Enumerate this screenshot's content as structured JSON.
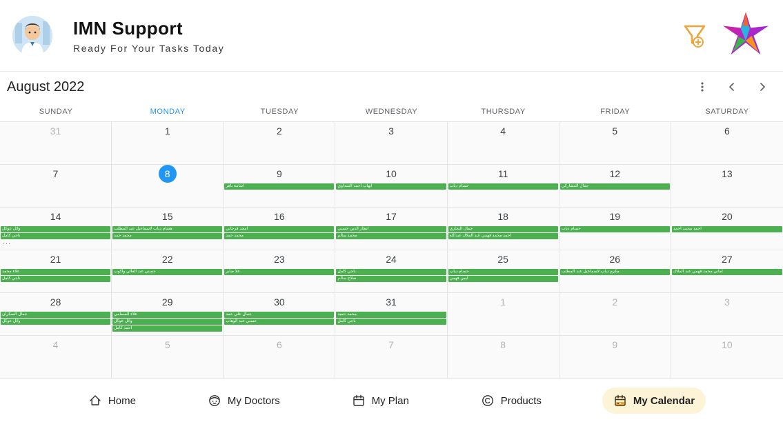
{
  "header": {
    "title": "IMN Support",
    "subtitle": "Ready For Your Tasks Today"
  },
  "colors": {
    "event_green": "#4caf50",
    "selected_blue": "#2196f3",
    "nav_active_bg": "#fdf3d7"
  },
  "calendar": {
    "month_label": "August 2022",
    "weekdays": [
      {
        "label": "SUNDAY",
        "active": false
      },
      {
        "label": "MONDAY",
        "active": true
      },
      {
        "label": "TUESDAY",
        "active": false
      },
      {
        "label": "WEDNESDAY",
        "active": false
      },
      {
        "label": "THURSDAY",
        "active": false
      },
      {
        "label": "FRIDAY",
        "active": false
      },
      {
        "label": "SATURDAY",
        "active": false
      }
    ],
    "weeks": [
      [
        {
          "day": "31",
          "muted": true,
          "events": []
        },
        {
          "day": "1",
          "events": []
        },
        {
          "day": "2",
          "events": []
        },
        {
          "day": "3",
          "events": []
        },
        {
          "day": "4",
          "events": []
        },
        {
          "day": "5",
          "events": []
        },
        {
          "day": "6",
          "events": []
        }
      ],
      [
        {
          "day": "7",
          "events": []
        },
        {
          "day": "8",
          "selected": true,
          "events": []
        },
        {
          "day": "9",
          "events": [
            "اسامة باهر"
          ]
        },
        {
          "day": "10",
          "events": [
            "ايهاب احمد السداوي"
          ]
        },
        {
          "day": "11",
          "events": [
            "حسام دياب"
          ]
        },
        {
          "day": "12",
          "events": [
            "جمال المشاركي"
          ]
        },
        {
          "day": "13",
          "events": []
        }
      ],
      [
        {
          "day": "14",
          "events": [
            "وائل عوكل",
            "ناجي كامل"
          ],
          "more": true
        },
        {
          "day": "15",
          "events": [
            "هشام دياب لاسماعيل عبد المطلب",
            "محمد حمد"
          ]
        },
        {
          "day": "16",
          "events": [
            "امجد فرجاني",
            "محمد حمد"
          ]
        },
        {
          "day": "17",
          "events": [
            "انظار الدين حسني",
            "محمد سالم"
          ]
        },
        {
          "day": "18",
          "events": [
            "جمال البخاري",
            "احمد محمد فهمي عبد الملاك عبدالله"
          ]
        },
        {
          "day": "19",
          "events": [
            "حسام دياب"
          ]
        },
        {
          "day": "20",
          "events": [
            "احمد محمد احمد"
          ]
        }
      ],
      [
        {
          "day": "21",
          "events": [
            "علاء محمد",
            "ناجي كامل"
          ]
        },
        {
          "day": "22",
          "events": [
            "حسني عبد العالي واكوب"
          ]
        },
        {
          "day": "23",
          "events": [
            "علا صابر"
          ]
        },
        {
          "day": "24",
          "events": [
            "ناجي كامل",
            "صلاح سالم"
          ]
        },
        {
          "day": "25",
          "events": [
            "حسام دياب",
            "ايمن فهمي"
          ]
        },
        {
          "day": "26",
          "events": [
            "مكرم دياب لاسماعيل عبد المطلب"
          ]
        },
        {
          "day": "27",
          "events": [
            "اماني محمد فهمي عبد الملاك"
          ]
        }
      ],
      [
        {
          "day": "28",
          "events": [
            "جمال السكران",
            "وائل عوكل"
          ]
        },
        {
          "day": "29",
          "events": [
            "علاء السمامي",
            "وائل عوكل",
            "احمد كامل"
          ]
        },
        {
          "day": "30",
          "events": [
            "جمال علي حمد",
            "حسني عبد الوهاب"
          ]
        },
        {
          "day": "31",
          "events": [
            "محمد حميد",
            "ناجي كامل"
          ]
        },
        {
          "day": "1",
          "muted": true,
          "events": []
        },
        {
          "day": "2",
          "muted": true,
          "events": []
        },
        {
          "day": "3",
          "muted": true,
          "events": []
        }
      ],
      [
        {
          "day": "4",
          "muted": true,
          "events": []
        },
        {
          "day": "5",
          "muted": true,
          "events": []
        },
        {
          "day": "6",
          "muted": true,
          "events": []
        },
        {
          "day": "7",
          "muted": true,
          "events": []
        },
        {
          "day": "8",
          "muted": true,
          "events": []
        },
        {
          "day": "9",
          "muted": true,
          "events": []
        },
        {
          "day": "10",
          "muted": true,
          "events": []
        }
      ]
    ]
  },
  "bottom_nav": {
    "items": [
      {
        "label": "Home",
        "icon": "home-icon",
        "active": false
      },
      {
        "label": "My Doctors",
        "icon": "doctors-icon",
        "active": false
      },
      {
        "label": "My Plan",
        "icon": "plan-icon",
        "active": false
      },
      {
        "label": "Products",
        "icon": "products-icon",
        "active": false
      },
      {
        "label": "My Calendar",
        "icon": "my-calendar-icon",
        "active": true
      }
    ]
  }
}
